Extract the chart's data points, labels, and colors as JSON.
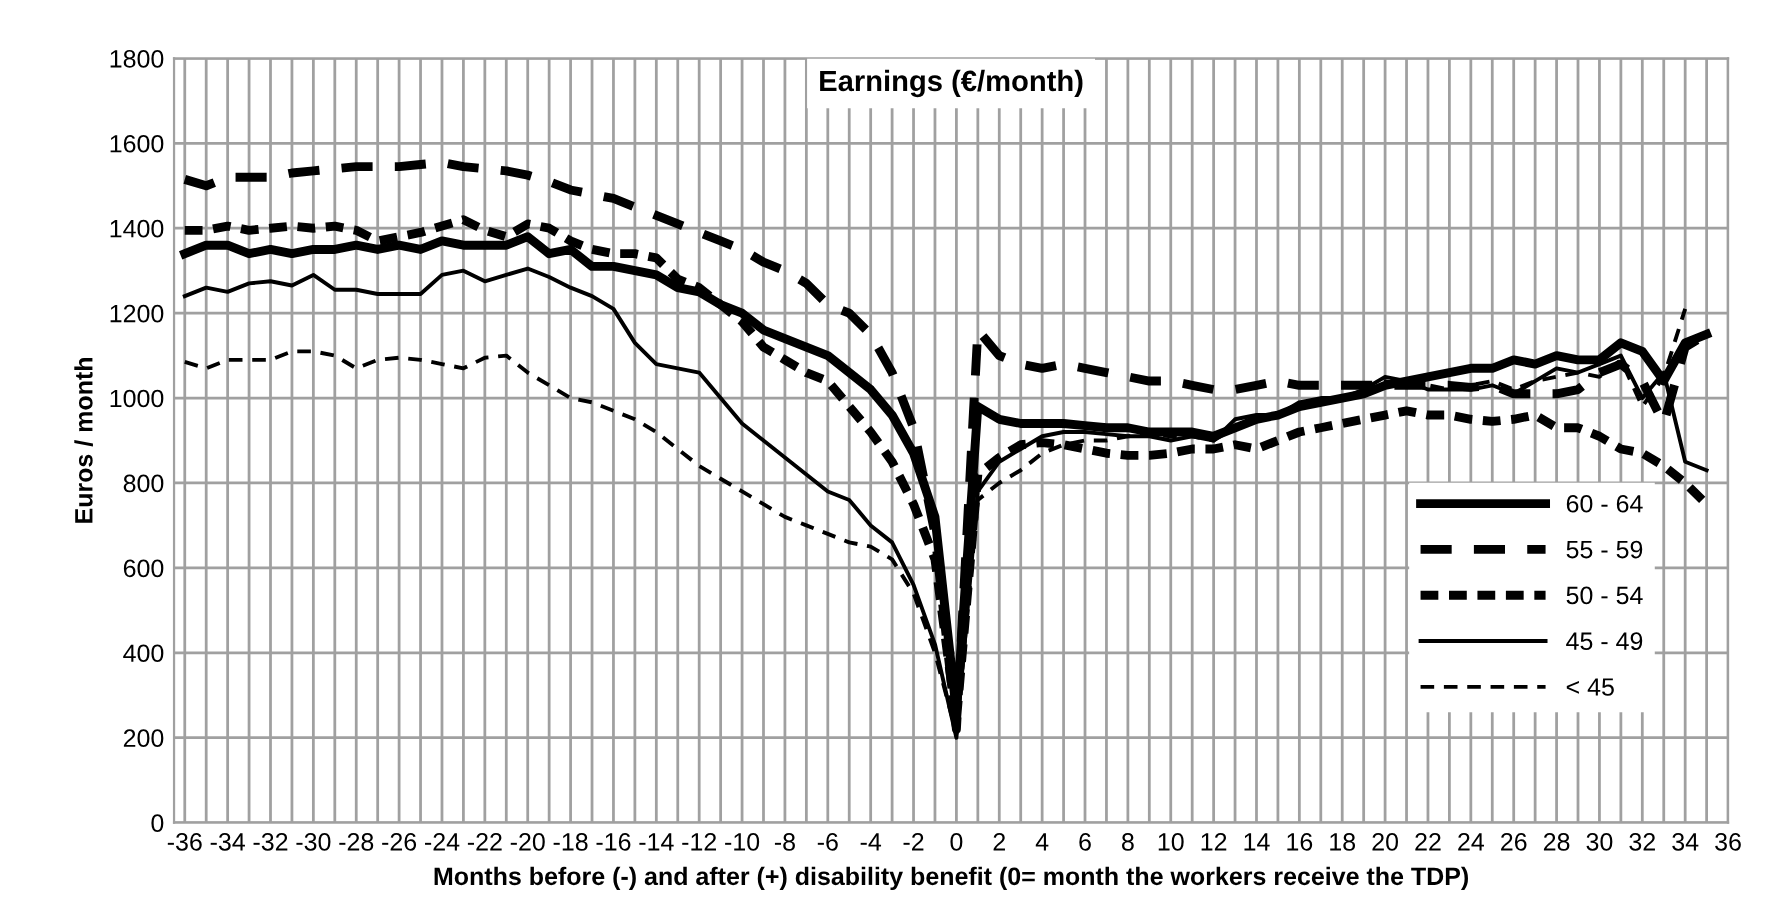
{
  "chart_data": {
    "type": "line",
    "title": "Earnings (€/month)",
    "xlabel": "Months before (-) and after (+) disability benefit (0= month the workers receive the TDP)",
    "ylabel": "Euros / month",
    "x": [
      -36,
      -35,
      -34,
      -33,
      -32,
      -31,
      -30,
      -29,
      -28,
      -27,
      -26,
      -25,
      -24,
      -23,
      -22,
      -21,
      -20,
      -19,
      -18,
      -17,
      -16,
      -15,
      -14,
      -13,
      -12,
      -11,
      -10,
      -9,
      -8,
      -7,
      -6,
      -5,
      -4,
      -3,
      -2,
      -1,
      0,
      1,
      2,
      3,
      4,
      5,
      6,
      7,
      8,
      9,
      10,
      11,
      12,
      13,
      14,
      15,
      16,
      17,
      18,
      19,
      20,
      21,
      22,
      23,
      24,
      25,
      26,
      27,
      28,
      29,
      30,
      31,
      32,
      33,
      34,
      35
    ],
    "series": [
      {
        "name": "60 - 64",
        "color": "#000000",
        "line_style": "solid",
        "values": [
          1340,
          1360,
          1360,
          1340,
          1350,
          1340,
          1350,
          1350,
          1360,
          1350,
          1360,
          1350,
          1370,
          1360,
          1360,
          1360,
          1380,
          1340,
          1350,
          1310,
          1310,
          1300,
          1290,
          1260,
          1250,
          1220,
          1200,
          1160,
          1140,
          1120,
          1100,
          1060,
          1020,
          960,
          870,
          720,
          260,
          980,
          950,
          940,
          940,
          940,
          935,
          930,
          930,
          920,
          920,
          920,
          910,
          930,
          950,
          960,
          980,
          990,
          1000,
          1010,
          1030,
          1040,
          1050,
          1060,
          1070,
          1070,
          1090,
          1080,
          1100,
          1090,
          1090,
          1130,
          1110,
          1040,
          1130,
          1150
        ]
      },
      {
        "name": "55 - 59",
        "color": "#000000",
        "line_style": "dashed",
        "values": [
          1515,
          1500,
          1520,
          1520,
          1520,
          1530,
          1535,
          1540,
          1545,
          1545,
          1545,
          1550,
          1555,
          1545,
          1540,
          1535,
          1525,
          1510,
          1490,
          1480,
          1470,
          1450,
          1430,
          1410,
          1390,
          1370,
          1350,
          1320,
          1300,
          1270,
          1220,
          1200,
          1150,
          1060,
          930,
          680,
          220,
          1160,
          1100,
          1080,
          1070,
          1080,
          1070,
          1060,
          1050,
          1040,
          1040,
          1030,
          1020,
          1020,
          1030,
          1040,
          1030,
          1030,
          1030,
          1030,
          1030,
          1030,
          1030,
          1030,
          1025,
          1030,
          1010,
          1010,
          1010,
          1020,
          1060,
          1080,
          1040,
          940,
          1120,
          1150
        ]
      },
      {
        "name": "50 - 54",
        "color": "#000000",
        "line_style": "dotted",
        "values": [
          1395,
          1395,
          1405,
          1395,
          1400,
          1405,
          1400,
          1405,
          1395,
          1370,
          1380,
          1390,
          1405,
          1420,
          1395,
          1380,
          1410,
          1400,
          1370,
          1350,
          1340,
          1340,
          1330,
          1280,
          1260,
          1220,
          1180,
          1120,
          1090,
          1060,
          1040,
          980,
          920,
          850,
          750,
          620,
          240,
          820,
          860,
          890,
          895,
          890,
          880,
          870,
          865,
          865,
          870,
          880,
          880,
          890,
          880,
          900,
          920,
          930,
          940,
          950,
          960,
          970,
          960,
          960,
          950,
          945,
          950,
          960,
          930,
          930,
          910,
          880,
          870,
          840,
          800,
          750
        ]
      },
      {
        "name": "45 - 49",
        "color": "#000000",
        "line_style": "solid",
        "values": [
          1240,
          1260,
          1250,
          1270,
          1275,
          1265,
          1290,
          1255,
          1255,
          1245,
          1245,
          1245,
          1290,
          1300,
          1275,
          1290,
          1305,
          1285,
          1260,
          1240,
          1210,
          1130,
          1080,
          1070,
          1060,
          1000,
          940,
          900,
          860,
          820,
          780,
          760,
          700,
          660,
          560,
          420,
          200,
          780,
          850,
          880,
          910,
          920,
          920,
          915,
          910,
          910,
          900,
          910,
          900,
          950,
          960,
          960,
          990,
          1000,
          1000,
          1020,
          1050,
          1040,
          1020,
          1020,
          1020,
          1030,
          1010,
          1040,
          1070,
          1060,
          1080,
          1100,
          1000,
          1060,
          850,
          830
        ]
      },
      {
        "name": "< 45",
        "color": "#000000",
        "line_style": "dashed",
        "values": [
          1085,
          1070,
          1090,
          1090,
          1090,
          1110,
          1110,
          1100,
          1070,
          1090,
          1095,
          1090,
          1080,
          1070,
          1095,
          1100,
          1060,
          1030,
          1000,
          990,
          970,
          950,
          920,
          880,
          840,
          810,
          780,
          750,
          720,
          700,
          680,
          660,
          650,
          620,
          540,
          400,
          210,
          760,
          800,
          830,
          870,
          890,
          900,
          900,
          910,
          915,
          910,
          910,
          900,
          930,
          950,
          960,
          980,
          990,
          1000,
          1010,
          1040,
          1030,
          1030,
          1020,
          1030,
          1040,
          1020,
          1040,
          1050,
          1060,
          1050,
          1090,
          980,
          1050,
          1210,
          null
        ]
      }
    ],
    "xlim": [
      -36.5,
      36
    ],
    "xticks": [
      -36,
      {
        "value": -35,
        "label": null
      },
      -34,
      {
        "value": -33,
        "label": null
      },
      -32,
      {
        "value": -31,
        "label": null
      },
      -30,
      {
        "value": -29,
        "label": null
      },
      -28,
      {
        "value": -27,
        "label": null
      },
      -26,
      {
        "value": -25,
        "label": null
      },
      -24,
      {
        "value": -23,
        "label": null
      },
      -22,
      {
        "value": -21,
        "label": null
      },
      -20,
      {
        "value": -19,
        "label": null
      },
      -18,
      {
        "value": -17,
        "label": null
      },
      -16,
      {
        "value": -15,
        "label": null
      },
      -14,
      {
        "value": -13,
        "label": null
      },
      -12,
      {
        "value": -11,
        "label": null
      },
      -10,
      {
        "value": -9,
        "label": null
      },
      -8,
      {
        "value": -7,
        "label": null
      },
      -6,
      {
        "value": -5,
        "label": null
      },
      -4,
      {
        "value": -3,
        "label": null
      },
      -2,
      {
        "value": -1,
        "label": null
      },
      0,
      {
        "value": 1,
        "label": null
      },
      2,
      {
        "value": 3,
        "label": null
      },
      4,
      {
        "value": 5,
        "label": null
      },
      6,
      {
        "value": 7,
        "label": null
      },
      8,
      {
        "value": 9,
        "label": null
      },
      10,
      {
        "value": 11,
        "label": null
      },
      12,
      {
        "value": 13,
        "label": null
      },
      14,
      {
        "value": 15,
        "label": null
      },
      16,
      {
        "value": 17,
        "label": null
      },
      18,
      {
        "value": 19,
        "label": null
      },
      20,
      {
        "value": 21,
        "label": null
      },
      22,
      {
        "value": 23,
        "label": null
      },
      24,
      {
        "value": 25,
        "label": null
      },
      26,
      {
        "value": 27,
        "label": null
      },
      28,
      {
        "value": 29,
        "label": null
      },
      30,
      {
        "value": 31,
        "label": null
      },
      32,
      {
        "value": 33,
        "label": null
      },
      34,
      {
        "value": 35,
        "label": null
      },
      36
    ],
    "ylim": [
      0,
      1800
    ],
    "yticks": [
      0,
      200,
      400,
      600,
      800,
      1000,
      1200,
      1400,
      1600,
      1800
    ],
    "grid": true,
    "legend": "lower right"
  }
}
